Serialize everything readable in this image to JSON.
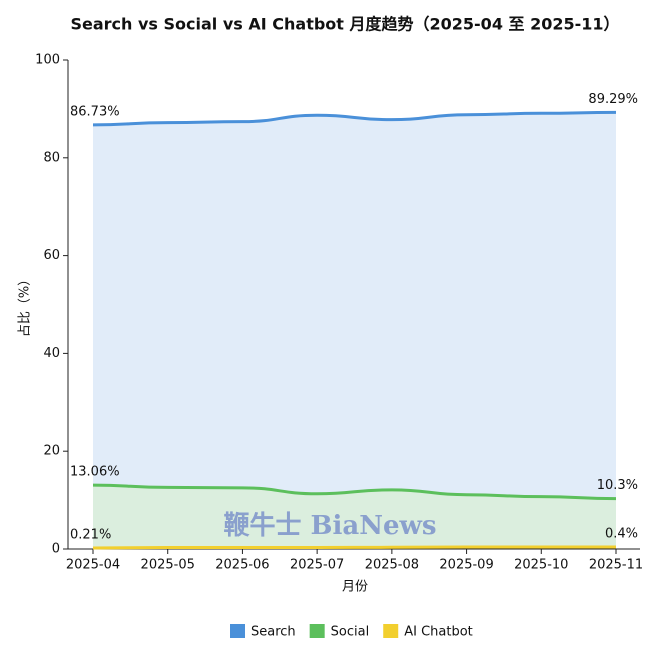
{
  "chart_data": {
    "type": "area",
    "title": "Search vs Social vs AI Chatbot 月度趋势（2025-04 至 2025-11）",
    "x_label": "月份",
    "y_label": "占比（%）",
    "categories": [
      "2025-04",
      "2025-05",
      "2025-06",
      "2025-07",
      "2025-08",
      "2025-09",
      "2025-10",
      "2025-11"
    ],
    "series": [
      {
        "name": "Search",
        "color": "#4a90d9",
        "fill": "#dce9f8",
        "values": [
          86.73,
          87.2,
          87.4,
          88.7,
          87.8,
          88.8,
          89.1,
          89.29
        ],
        "value_labels": [
          "86.73%",
          null,
          null,
          null,
          null,
          null,
          null,
          "89.29%"
        ]
      },
      {
        "name": "Social",
        "color": "#5cbf5c",
        "fill": "#d9efd9",
        "values": [
          13.06,
          12.6,
          12.5,
          11.3,
          12.1,
          11.1,
          10.7,
          10.3
        ],
        "value_labels": [
          "13.06%",
          null,
          null,
          null,
          null,
          null,
          null,
          "10.3%"
        ]
      },
      {
        "name": "AI Chatbot",
        "color": "#f2cf2e",
        "fill": "#f8eab0",
        "values": [
          0.21,
          0.3,
          0.3,
          0.3,
          0.35,
          0.4,
          0.4,
          0.4
        ],
        "value_labels": [
          "0.21%",
          null,
          null,
          null,
          null,
          null,
          null,
          "0.4%"
        ]
      }
    ],
    "ylim": [
      0,
      100
    ],
    "yticks": [
      0,
      20,
      40,
      60,
      80,
      100
    ],
    "watermark": "鞭牛士 BiaNews"
  }
}
